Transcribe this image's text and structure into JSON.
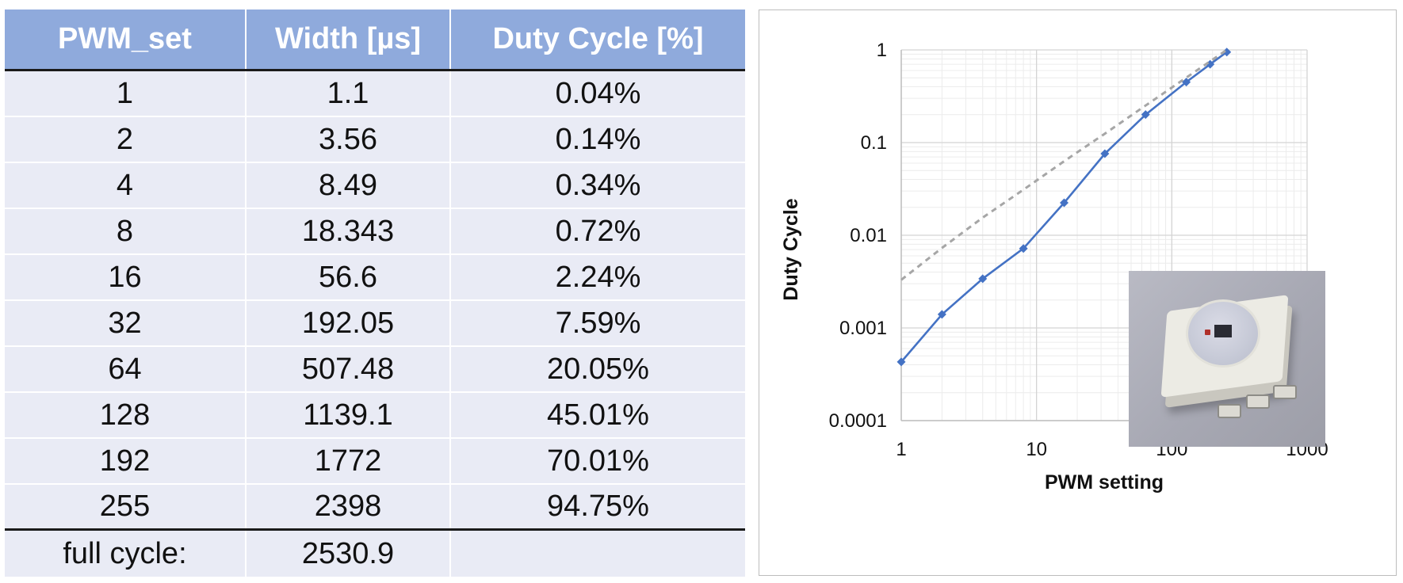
{
  "table": {
    "headers": [
      "PWM_set",
      "Width [µs]",
      "Duty Cycle [%]"
    ],
    "rows": [
      [
        "1",
        "1.1",
        "0.04%"
      ],
      [
        "2",
        "3.56",
        "0.14%"
      ],
      [
        "4",
        "8.49",
        "0.34%"
      ],
      [
        "8",
        "18.343",
        "0.72%"
      ],
      [
        "16",
        "56.6",
        "2.24%"
      ],
      [
        "32",
        "192.05",
        "7.59%"
      ],
      [
        "64",
        "507.48",
        "20.05%"
      ],
      [
        "128",
        "1139.1",
        "45.01%"
      ],
      [
        "192",
        "1772",
        "70.01%"
      ],
      [
        "255",
        "2398",
        "94.75%"
      ]
    ],
    "footer": [
      "full cycle:",
      "2530.9",
      ""
    ]
  },
  "chart_data": {
    "type": "line",
    "xlabel": "PWM setting",
    "ylabel": "Duty Cycle",
    "xscale": "log",
    "yscale": "log",
    "xlim": [
      1,
      1000
    ],
    "ylim": [
      0.0001,
      1
    ],
    "x_ticks": [
      "1",
      "10",
      "100",
      "1000"
    ],
    "y_ticks": [
      "0.0001",
      "0.001",
      "0.01",
      "0.1",
      "1"
    ],
    "grid": true,
    "legend": "none",
    "series": [
      {
        "style": "solid-with-diamond-markers",
        "color": "#4472c4",
        "x": [
          1,
          2,
          4,
          8,
          16,
          32,
          64,
          128,
          192,
          255
        ],
        "y": [
          0.00043,
          0.0014,
          0.0034,
          0.0072,
          0.0224,
          0.0759,
          0.2005,
          0.4501,
          0.7001,
          0.9475
        ]
      },
      {
        "style": "dashed",
        "color": "#a6a6a6",
        "x": [
          1,
          2,
          4,
          8,
          16,
          32,
          64,
          128,
          192,
          255
        ],
        "y": [
          0.0033,
          0.0073,
          0.0155,
          0.031,
          0.063,
          0.125,
          0.251,
          0.502,
          0.753,
          1.0
        ]
      }
    ]
  },
  "inset_image": "smd-rgb-led-photo"
}
